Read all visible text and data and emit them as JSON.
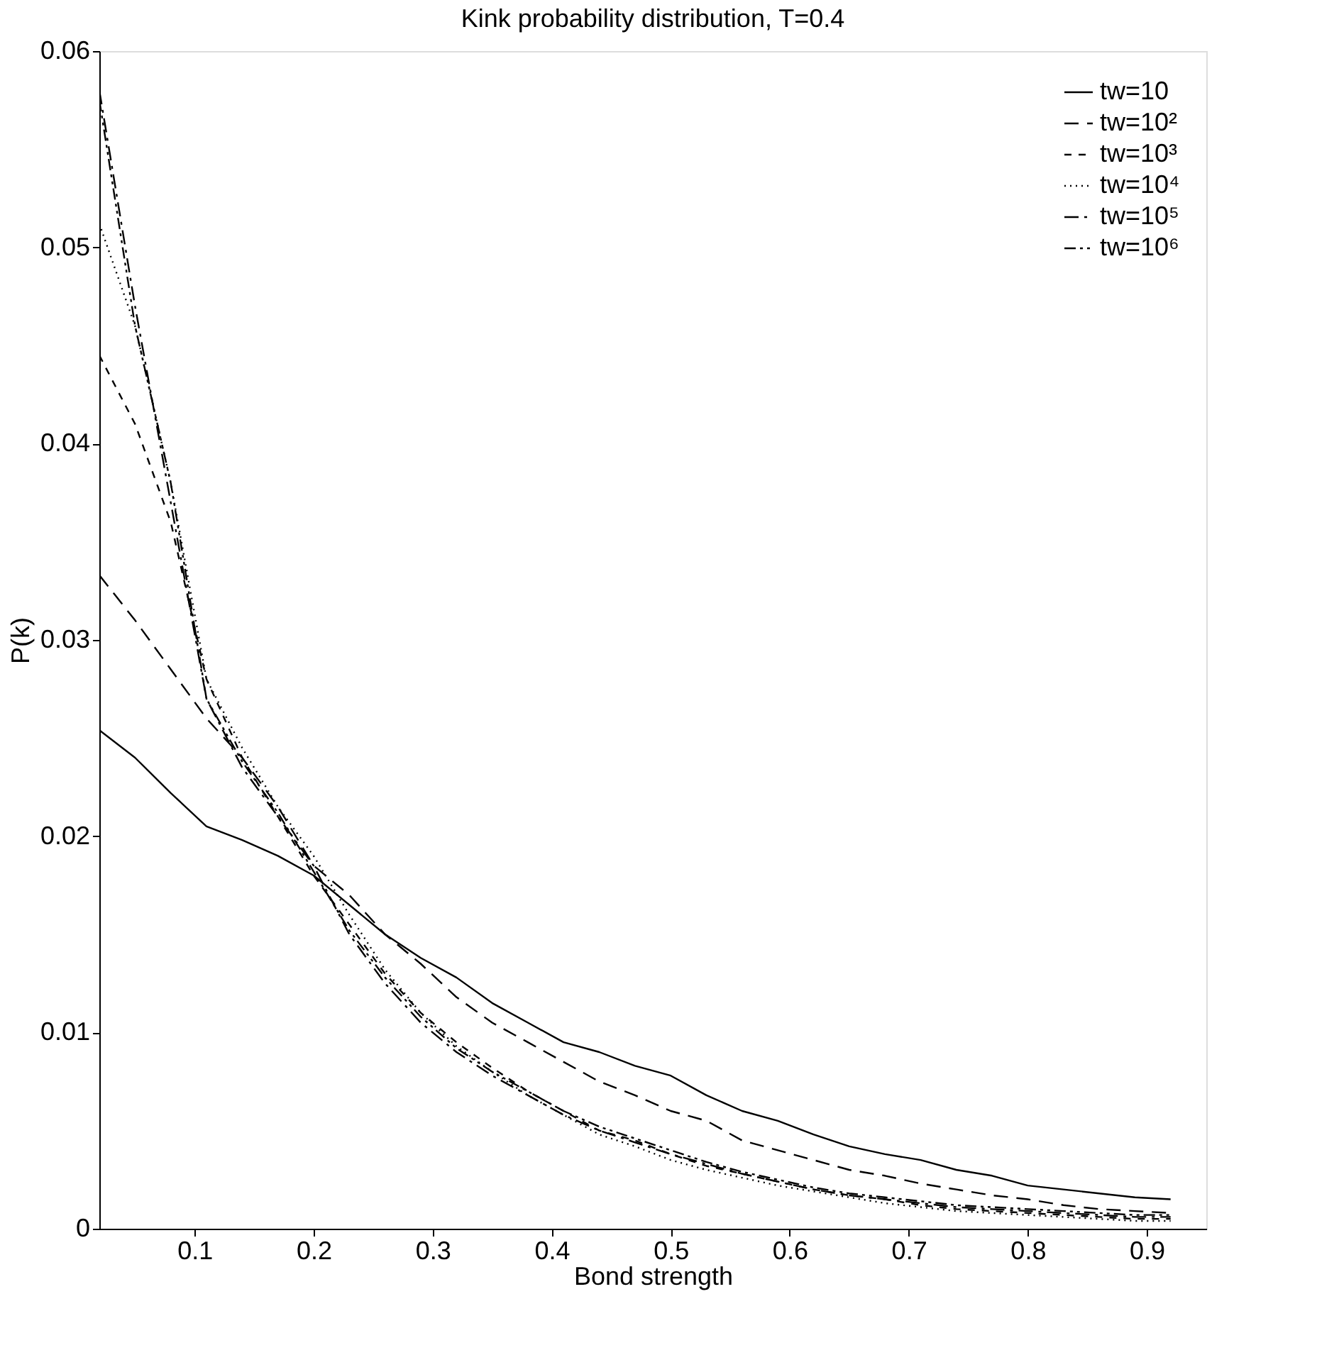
{
  "chart_data": {
    "type": "line",
    "title": "Kink probability distribution, T=0.4",
    "xlabel": "Bond strength",
    "ylabel": "P(k)",
    "x": [
      0.02,
      0.05,
      0.08,
      0.11,
      0.14,
      0.17,
      0.2,
      0.23,
      0.26,
      0.29,
      0.32,
      0.35,
      0.38,
      0.41,
      0.44,
      0.47,
      0.5,
      0.53,
      0.56,
      0.59,
      0.62,
      0.65,
      0.68,
      0.71,
      0.74,
      0.77,
      0.8,
      0.83,
      0.86,
      0.89,
      0.92
    ],
    "series": [
      {
        "name": "tw=10",
        "color": "#000000",
        "line_style": "solid",
        "values": [
          0.0254,
          0.024,
          0.0222,
          0.0205,
          0.0198,
          0.019,
          0.018,
          0.0165,
          0.015,
          0.0138,
          0.0128,
          0.0115,
          0.0105,
          0.0095,
          0.009,
          0.0083,
          0.0078,
          0.0068,
          0.006,
          0.0055,
          0.0048,
          0.0042,
          0.0038,
          0.0035,
          0.003,
          0.0027,
          0.0022,
          0.002,
          0.0018,
          0.0016,
          0.0015
        ]
      },
      {
        "name": "tw=10²",
        "color": "#000000",
        "line_style": "dashed",
        "values": [
          0.0333,
          0.031,
          0.0285,
          0.026,
          0.024,
          0.0215,
          0.0185,
          0.017,
          0.015,
          0.0135,
          0.0118,
          0.0105,
          0.0095,
          0.0085,
          0.0075,
          0.0068,
          0.006,
          0.0055,
          0.0045,
          0.004,
          0.0035,
          0.003,
          0.0027,
          0.0023,
          0.002,
          0.0017,
          0.0015,
          0.0012,
          0.001,
          0.0009,
          0.0008
        ]
      },
      {
        "name": "tw=10³",
        "color": "#000000",
        "line_style": "dashed",
        "values": [
          0.0445,
          0.041,
          0.036,
          0.028,
          0.024,
          0.021,
          0.018,
          0.0155,
          0.013,
          0.011,
          0.0095,
          0.0082,
          0.007,
          0.006,
          0.005,
          0.0045,
          0.0038,
          0.0032,
          0.0028,
          0.0024,
          0.002,
          0.0017,
          0.0015,
          0.0012,
          0.001,
          0.0009,
          0.0008,
          0.0007,
          0.0006,
          0.0005,
          0.0005
        ]
      },
      {
        "name": "tw=10⁴",
        "color": "#000000",
        "line_style": "dotted",
        "values": [
          0.0512,
          0.046,
          0.038,
          0.028,
          0.0245,
          0.0215,
          0.019,
          0.016,
          0.0132,
          0.011,
          0.0093,
          0.008,
          0.0068,
          0.0058,
          0.0048,
          0.0042,
          0.0035,
          0.003,
          0.0026,
          0.0022,
          0.0019,
          0.0016,
          0.0013,
          0.0011,
          0.0009,
          0.0008,
          0.0007,
          0.0006,
          0.0005,
          0.0004,
          0.0004
        ]
      },
      {
        "name": "tw=10⁵",
        "color": "#000000",
        "line_style": "dashed",
        "values": [
          0.058,
          0.047,
          0.037,
          0.027,
          0.0235,
          0.021,
          0.0185,
          0.015,
          0.0125,
          0.0105,
          0.009,
          0.0078,
          0.0068,
          0.0058,
          0.005,
          0.0044,
          0.0038,
          0.0033,
          0.0028,
          0.0024,
          0.002,
          0.0017,
          0.0015,
          0.0013,
          0.0011,
          0.001,
          0.0009,
          0.0008,
          0.0007,
          0.0006,
          0.0006
        ]
      },
      {
        "name": "tw=10⁶",
        "color": "#000000",
        "line_style": "dashed",
        "values": [
          0.0575,
          0.046,
          0.038,
          0.027,
          0.0238,
          0.0212,
          0.0182,
          0.0152,
          0.0128,
          0.0108,
          0.0092,
          0.008,
          0.007,
          0.006,
          0.0052,
          0.0046,
          0.004,
          0.0034,
          0.0029,
          0.0025,
          0.0021,
          0.0018,
          0.0016,
          0.0014,
          0.0012,
          0.0011,
          0.001,
          0.0009,
          0.0008,
          0.0007,
          0.0007
        ]
      }
    ],
    "xlim": [
      0.02,
      0.95
    ],
    "xticks": [
      0.1,
      0.2,
      0.3,
      0.4,
      0.5,
      0.6,
      0.7,
      0.8,
      0.9
    ],
    "ylim": [
      0,
      0.06
    ],
    "yticks": [
      0,
      0.01,
      0.02,
      0.03,
      0.04,
      0.05,
      0.06
    ],
    "legend": "top right",
    "grid": false,
    "marker": "none"
  }
}
